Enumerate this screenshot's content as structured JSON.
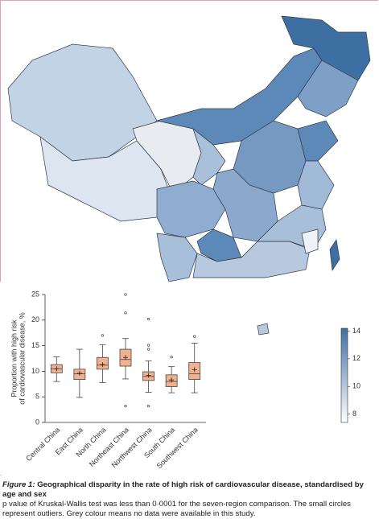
{
  "chart_data": {
    "type": "box",
    "y_label": [
      "Proportion with high risk",
      "of cardiovascular disease, %"
    ],
    "categories": [
      "Central China",
      "East China",
      "North China",
      "Northeast China",
      "Northwest China",
      "South China",
      "Southwest China"
    ],
    "boxes": [
      {
        "min": 8,
        "q1": 9.7,
        "median": 10.5,
        "q3": 11.3,
        "max": 12.8,
        "mean": 10.5,
        "outliers": []
      },
      {
        "min": 4.9,
        "q1": 8.4,
        "median": 9.5,
        "q3": 10.4,
        "max": 14.3,
        "mean": 9.6,
        "outliers": []
      },
      {
        "min": 7.8,
        "q1": 10.4,
        "median": 11.2,
        "q3": 12.7,
        "max": 15.2,
        "mean": 11.3,
        "outliers": [
          17
        ]
      },
      {
        "min": 8.5,
        "q1": 11,
        "median": 12.3,
        "q3": 14.3,
        "max": 16.4,
        "mean": 12.7,
        "outliers": [
          21.4,
          25,
          3.2
        ]
      },
      {
        "min": 5.9,
        "q1": 8.2,
        "median": 9,
        "q3": 9.9,
        "max": 12,
        "mean": 9.2,
        "outliers": [
          14.3,
          15.1,
          20.2,
          3.2
        ]
      },
      {
        "min": 5.8,
        "q1": 7,
        "median": 8,
        "q3": 9.3,
        "max": 10.9,
        "mean": 8.3,
        "outliers": [
          12.8
        ]
      },
      {
        "min": 5.8,
        "q1": 8.4,
        "median": 9.5,
        "q3": 11.7,
        "max": 15.5,
        "mean": 10.3,
        "outliers": [
          16.8
        ]
      }
    ],
    "color": "#f2b08f",
    "ylim": [
      0,
      25
    ],
    "yticks": [
      0,
      5,
      10,
      15,
      20,
      25
    ]
  },
  "colorbar": {
    "lim": [
      7.4,
      14.2
    ],
    "ticks": [
      8,
      10,
      12,
      14
    ],
    "colors": [
      "#ffffff",
      "#3e6fa3"
    ]
  },
  "caption": {
    "label": "Figure 1:",
    "title": "Geographical disparity in the rate of high risk of cardiovascular disease, standardised by age and sex",
    "text": "p value of Kruskal-Wallis test was less than 0·0001 for the seven-region comparison. The small circles represent outliers. Grey colour means no data were available in this study."
  }
}
